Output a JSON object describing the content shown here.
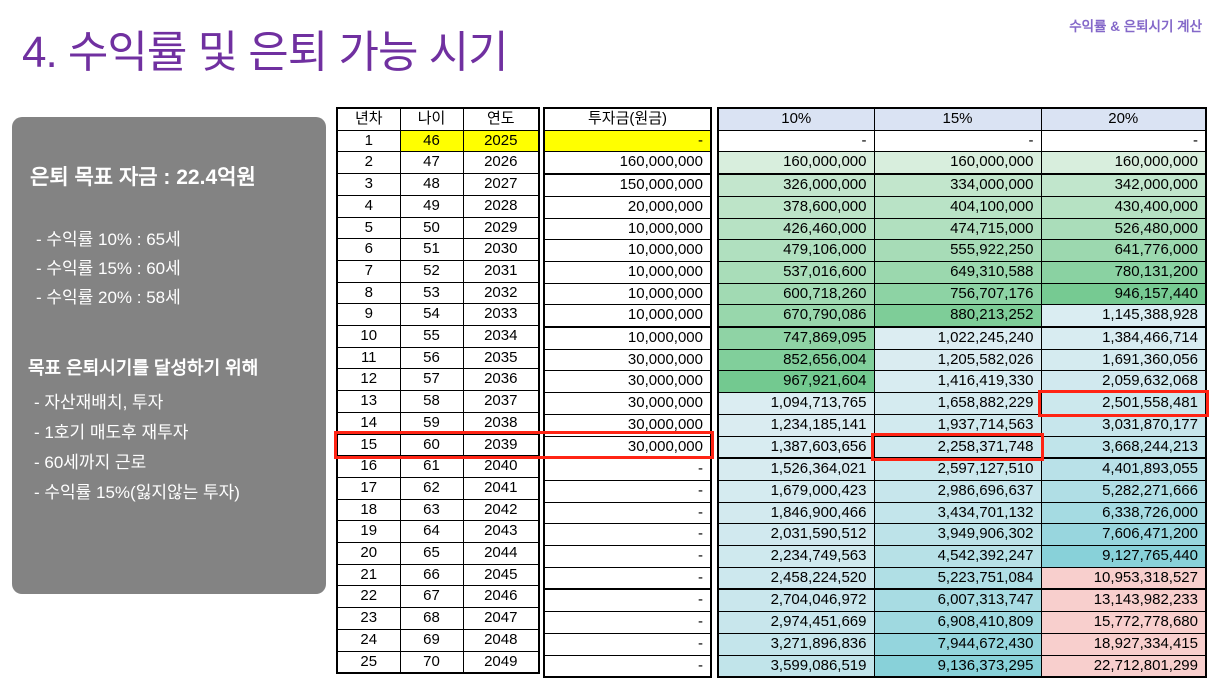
{
  "title": "4. 수익률 및 은퇴 가능 시기",
  "header_note": "수익률 & 은퇴시기 계산",
  "panel": {
    "goal_heading": "은퇴 목표 자금 : 22.4억원",
    "goal_lines": [
      "- 수익률 10% : 65세",
      "- 수익률 15% : 60세",
      "- 수익률 20% : 58세"
    ],
    "plan_heading": "목표 은퇴시기를 달성하기 위해",
    "plan_lines": [
      "- 자산재배치, 투자",
      "- 1호기 매도후 재투자",
      "- 60세까지 근로",
      "- 수익률 15%(잃지않는 투자)"
    ]
  },
  "table": {
    "headers": [
      "년차",
      "나이",
      "연도",
      "투자금(원금)",
      "10%",
      "15%",
      "20%"
    ],
    "rows": [
      [
        "1",
        "46",
        "2025",
        "-",
        "-",
        "-",
        "-"
      ],
      [
        "2",
        "47",
        "2026",
        "160,000,000",
        "160,000,000",
        "160,000,000",
        "160,000,000"
      ],
      [
        "3",
        "48",
        "2027",
        "150,000,000",
        "326,000,000",
        "334,000,000",
        "342,000,000"
      ],
      [
        "4",
        "49",
        "2028",
        "20,000,000",
        "378,600,000",
        "404,100,000",
        "430,400,000"
      ],
      [
        "5",
        "50",
        "2029",
        "10,000,000",
        "426,460,000",
        "474,715,000",
        "526,480,000"
      ],
      [
        "6",
        "51",
        "2030",
        "10,000,000",
        "479,106,000",
        "555,922,250",
        "641,776,000"
      ],
      [
        "7",
        "52",
        "2031",
        "10,000,000",
        "537,016,600",
        "649,310,588",
        "780,131,200"
      ],
      [
        "8",
        "53",
        "2032",
        "10,000,000",
        "600,718,260",
        "756,707,176",
        "946,157,440"
      ],
      [
        "9",
        "54",
        "2033",
        "10,000,000",
        "670,790,086",
        "880,213,252",
        "1,145,388,928"
      ],
      [
        "10",
        "55",
        "2034",
        "10,000,000",
        "747,869,095",
        "1,022,245,240",
        "1,384,466,714"
      ],
      [
        "11",
        "56",
        "2035",
        "30,000,000",
        "852,656,004",
        "1,205,582,026",
        "1,691,360,056"
      ],
      [
        "12",
        "57",
        "2036",
        "30,000,000",
        "967,921,604",
        "1,416,419,330",
        "2,059,632,068"
      ],
      [
        "13",
        "58",
        "2037",
        "30,000,000",
        "1,094,713,765",
        "1,658,882,229",
        "2,501,558,481"
      ],
      [
        "14",
        "59",
        "2038",
        "30,000,000",
        "1,234,185,141",
        "1,937,714,563",
        "3,031,870,177"
      ],
      [
        "15",
        "60",
        "2039",
        "30,000,000",
        "1,387,603,656",
        "2,258,371,748",
        "3,668,244,213"
      ],
      [
        "16",
        "61",
        "2040",
        "-",
        "1,526,364,021",
        "2,597,127,510",
        "4,401,893,055"
      ],
      [
        "17",
        "62",
        "2041",
        "-",
        "1,679,000,423",
        "2,986,696,637",
        "5,282,271,666"
      ],
      [
        "18",
        "63",
        "2042",
        "-",
        "1,846,900,466",
        "3,434,701,132",
        "6,338,726,000"
      ],
      [
        "19",
        "64",
        "2043",
        "-",
        "2,031,590,512",
        "3,949,906,302",
        "7,606,471,200"
      ],
      [
        "20",
        "65",
        "2044",
        "-",
        "2,234,749,563",
        "4,542,392,247",
        "9,127,765,440"
      ],
      [
        "21",
        "66",
        "2045",
        "-",
        "2,458,224,520",
        "5,223,751,084",
        "10,953,318,527"
      ],
      [
        "22",
        "67",
        "2046",
        "-",
        "2,704,046,972",
        "6,007,313,747",
        "13,143,982,233"
      ],
      [
        "23",
        "68",
        "2047",
        "-",
        "2,974,451,669",
        "6,908,410,809",
        "15,772,778,680"
      ],
      [
        "24",
        "69",
        "2048",
        "-",
        "3,271,896,836",
        "7,944,672,430",
        "18,927,334,415"
      ],
      [
        "25",
        "70",
        "2049",
        "-",
        "3,599,086,519",
        "9,136,373,295",
        "22,712,801,299"
      ]
    ],
    "highlight_row_year": "1",
    "thick_border_after_years": [
      "2",
      "9",
      "15",
      "21"
    ]
  },
  "annotations": {
    "row_box": {
      "year": "15",
      "note": "red box around 년차~투자금 of row 15"
    },
    "cell_boxes": [
      {
        "year": "13",
        "column": "20%"
      },
      {
        "year": "15",
        "column": "15%"
      }
    ]
  },
  "colors": {
    "title_purple": "#7030a0",
    "note_purple": "#8468c9",
    "panel_gray": "#838383",
    "header_pct_bg": "#dae3f3",
    "highlight_yellow": "#ffff00",
    "green_low": "#d8eedd",
    "green_high": "#6fc88d",
    "blue_low": "#dcedf2",
    "blue_high": "#87d1d9",
    "pink": "#f8cfcd",
    "red_box": "#ff2414"
  }
}
